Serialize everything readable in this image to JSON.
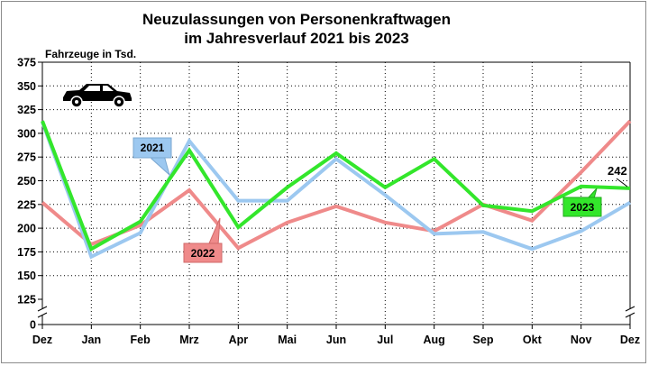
{
  "colors": {
    "s2021": "#9cc8f0",
    "s2022": "#ef8a8a",
    "s2023": "#33e62b"
  },
  "chart_data": {
    "type": "line",
    "title_line1": "Neuzulassungen von Personenkraftwagen",
    "title_line2": "im Jahresverlauf 2021 bis 2023",
    "ylabel": "Fahrzeuge in Tsd.",
    "icon": "car-icon",
    "categories": [
      "Dez",
      "Jan",
      "Feb",
      "Mrz",
      "Apr",
      "Mai",
      "Jun",
      "Jul",
      "Aug",
      "Sep",
      "Okt",
      "Nov",
      "Dez"
    ],
    "yticks": [
      "0",
      "125",
      "150",
      "175",
      "200",
      "225",
      "250",
      "275",
      "300",
      "325",
      "350",
      "375"
    ],
    "ylim": [
      125,
      375
    ],
    "axis_break": true,
    "grid": true,
    "series": [
      {
        "name": "2021",
        "values": [
          312,
          170,
          195,
          292,
          229,
          229,
          273,
          235,
          194,
          196,
          178,
          197,
          227
        ]
      },
      {
        "name": "2022",
        "values": [
          227,
          183,
          203,
          240,
          179,
          206,
          223,
          206,
          197,
          225,
          208,
          259,
          313
        ]
      },
      {
        "name": "2023",
        "values": [
          313,
          178,
          207,
          282,
          201,
          243,
          279,
          243,
          273,
          224,
          218,
          244,
          242
        ]
      }
    ],
    "annotations": {
      "label_2021": "2021",
      "label_2022": "2022",
      "label_2023": "2023",
      "end_value": "242"
    }
  }
}
